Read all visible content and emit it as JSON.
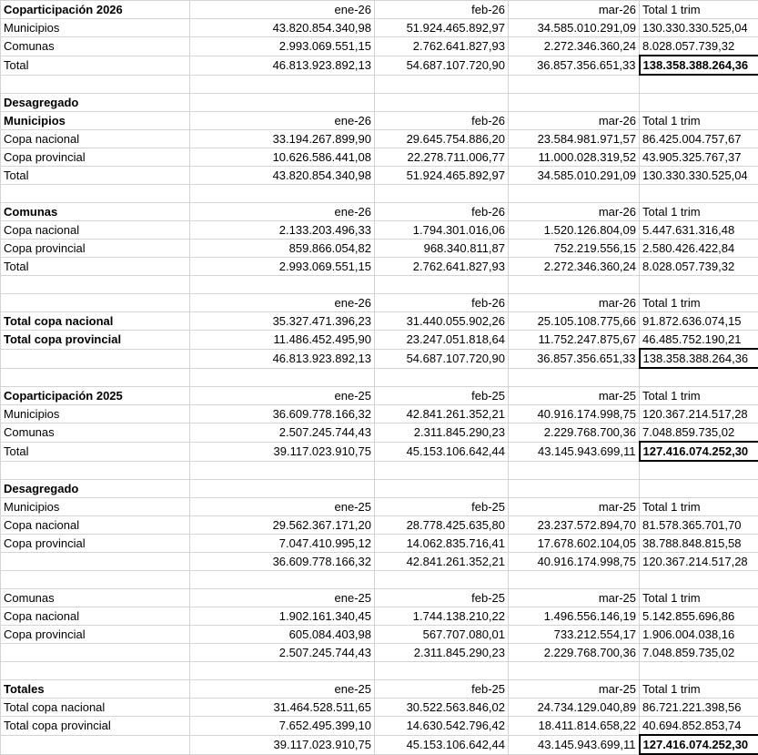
{
  "table": {
    "rows": [
      [
        "Coparticipación 2026",
        "ene-26",
        "feb-26",
        "mar-26",
        "Total 1 trim"
      ],
      [
        "Municipios",
        "43.820.854.340,98",
        "51.924.465.892,97",
        "34.585.010.291,09",
        "130.330.330.525,04"
      ],
      [
        "Comunas",
        "2.993.069.551,15",
        "2.762.641.827,93",
        "2.272.346.360,24",
        "8.028.057.739,32"
      ],
      [
        "Total",
        "46.813.923.892,13",
        "54.687.107.720,90",
        "36.857.356.651,33",
        "138.358.388.264,36"
      ],
      [
        null,
        null,
        null,
        null,
        null
      ],
      [
        "Desagregado",
        null,
        null,
        null,
        null
      ],
      [
        "Municipios",
        "ene-26",
        "feb-26",
        "mar-26",
        "Total 1 trim"
      ],
      [
        "Copa nacional",
        "33.194.267.899,90",
        "29.645.754.886,20",
        "23.584.981.971,57",
        "86.425.004.757,67"
      ],
      [
        "Copa provincial",
        "10.626.586.441,08",
        "22.278.711.006,77",
        "11.000.028.319,52",
        "43.905.325.767,37"
      ],
      [
        "Total",
        "43.820.854.340,98",
        "51.924.465.892,97",
        "34.585.010.291,09",
        "130.330.330.525,04"
      ],
      [
        null,
        null,
        null,
        null,
        null
      ],
      [
        "Comunas",
        "ene-26",
        "feb-26",
        "mar-26",
        "Total 1 trim"
      ],
      [
        "Copa nacional",
        "2.133.203.496,33",
        "1.794.301.016,06",
        "1.520.126.804,09",
        "5.447.631.316,48"
      ],
      [
        "Copa provincial",
        "859.866.054,82",
        "968.340.811,87",
        "752.219.556,15",
        "2.580.426.422,84"
      ],
      [
        "Total",
        "2.993.069.551,15",
        "2.762.641.827,93",
        "2.272.346.360,24",
        "8.028.057.739,32"
      ],
      [
        null,
        null,
        null,
        null,
        null
      ],
      [
        null,
        "ene-26",
        "feb-26",
        "mar-26",
        "Total 1 trim"
      ],
      [
        "Total copa nacional",
        "35.327.471.396,23",
        "31.440.055.902,26",
        "25.105.108.775,66",
        "91.872.636.074,15"
      ],
      [
        "Total copa provincial",
        "11.486.452.495,90",
        "23.247.051.818,64",
        "11.752.247.875,67",
        "46.485.752.190,21"
      ],
      [
        null,
        "46.813.923.892,13",
        "54.687.107.720,90",
        "36.857.356.651,33",
        "138.358.388.264,36"
      ],
      [
        null,
        null,
        null,
        null,
        null
      ],
      [
        "Coparticipación 2025",
        "ene-25",
        "feb-25",
        "mar-25",
        "Total 1 trim"
      ],
      [
        "Municipios",
        "36.609.778.166,32",
        "42.841.261.352,21",
        "40.916.174.998,75",
        "120.367.214.517,28"
      ],
      [
        "Comunas",
        "2.507.245.744,43",
        "2.311.845.290,23",
        "2.229.768.700,36",
        "7.048.859.735,02"
      ],
      [
        "Total",
        "39.117.023.910,75",
        "45.153.106.642,44",
        "43.145.943.699,11",
        "127.416.074.252,30"
      ],
      [
        null,
        null,
        null,
        null,
        null
      ],
      [
        "Desagregado",
        null,
        null,
        null,
        null
      ],
      [
        "Municipios",
        "ene-25",
        "feb-25",
        "mar-25",
        "Total 1 trim"
      ],
      [
        "Copa nacional",
        "29.562.367.171,20",
        "28.778.425.635,80",
        "23.237.572.894,70",
        "81.578.365.701,70"
      ],
      [
        "Copa provincial",
        "7.047.410.995,12",
        "14.062.835.716,41",
        "17.678.602.104,05",
        "38.788.848.815,58"
      ],
      [
        null,
        "36.609.778.166,32",
        "42.841.261.352,21",
        "40.916.174.998,75",
        "120.367.214.517,28"
      ],
      [
        null,
        null,
        null,
        null,
        null
      ],
      [
        "Comunas",
        "ene-25",
        "feb-25",
        "mar-25",
        "Total 1 trim"
      ],
      [
        "Copa nacional",
        "1.902.161.340,45",
        "1.744.138.210,22",
        "1.496.556.146,19",
        "5.142.855.696,86"
      ],
      [
        "Copa provincial",
        "605.084.403,98",
        "567.707.080,01",
        "733.212.554,17",
        "1.906.004.038,16"
      ],
      [
        null,
        "2.507.245.744,43",
        "2.311.845.290,23",
        "2.229.768.700,36",
        "7.048.859.735,02"
      ],
      [
        null,
        null,
        null,
        null,
        null
      ],
      [
        "Totales",
        "ene-25",
        "feb-25",
        "mar-25",
        "Total 1 trim"
      ],
      [
        "Total copa nacional",
        "31.464.528.511,65",
        "30.522.563.846,02",
        "24.734.129.040,89",
        "86.721.221.398,56"
      ],
      [
        "Total copa provincial",
        "7.652.495.399,10",
        "14.630.542.796,42",
        "18.411.814.658,22",
        "40.694.852.853,74"
      ],
      [
        null,
        "39.117.023.910,75",
        "45.153.106.642,44",
        "43.145.943.699,11",
        "127.416.074.252,30"
      ]
    ]
  }
}
